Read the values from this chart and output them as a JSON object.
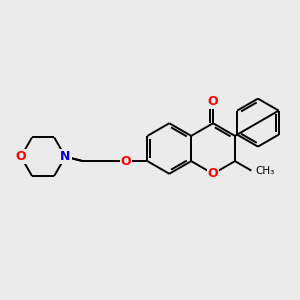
{
  "bg_color": "#ebebeb",
  "bond_color": "#000000",
  "oxygen_color": "#ff0000",
  "nitrogen_color": "#0000cc",
  "line_width": 1.4,
  "figsize": [
    3.0,
    3.0
  ],
  "dpi": 100,
  "xlim": [
    0,
    10
  ],
  "ylim": [
    0,
    10
  ]
}
